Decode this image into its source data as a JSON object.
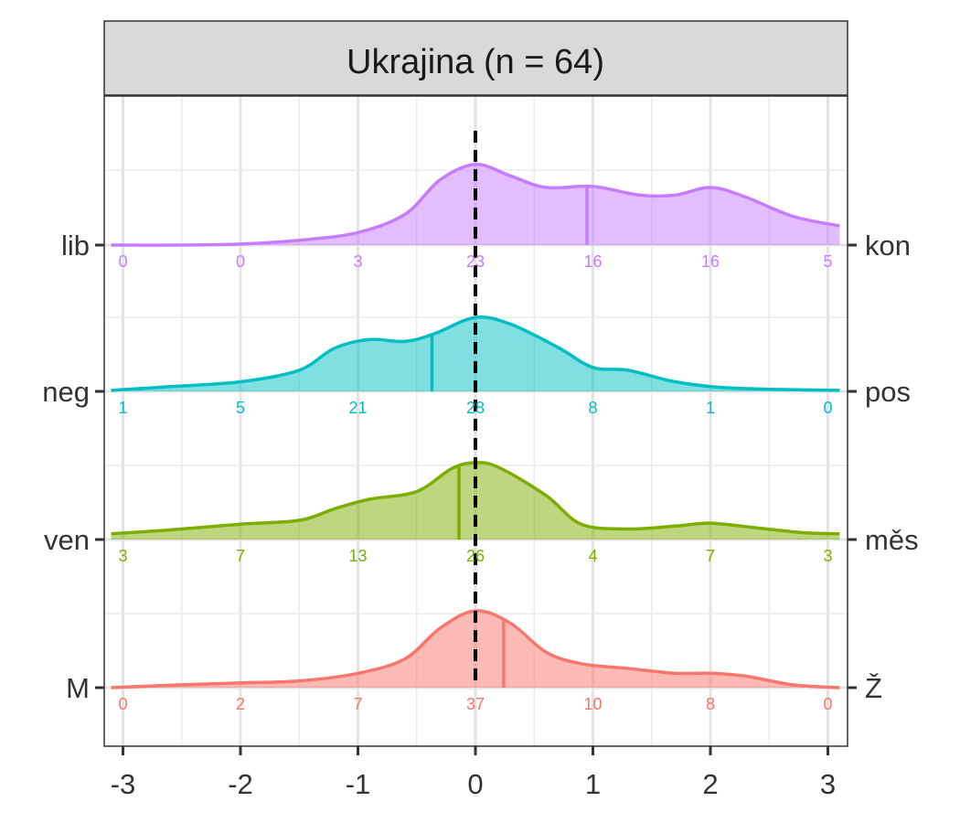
{
  "chart_data": {
    "type": "ridgeline-density",
    "title": "Ukrajina (n = 64)",
    "xlim": [
      -3.1,
      3.1
    ],
    "x_ticks": [
      -3,
      -2,
      -1,
      0,
      1,
      2,
      3
    ],
    "x_tick_labels": [
      "-3",
      "-2",
      "-1",
      "0",
      "1",
      "2",
      "3"
    ],
    "reference_line": 0,
    "count_positions": [
      -3,
      -2,
      -1,
      0,
      1,
      2,
      3
    ],
    "grid": true,
    "series": [
      {
        "name": "M–Ž",
        "left_label": "M",
        "right_label": "Ž",
        "color": "#F8766D",
        "mean": 0.24,
        "counts": [
          "0",
          "2",
          "7",
          "37",
          "10",
          "8",
          "0"
        ],
        "density": [
          [
            -3.1,
            0.0
          ],
          [
            -2.5,
            0.03
          ],
          [
            -2.0,
            0.05
          ],
          [
            -1.5,
            0.07
          ],
          [
            -1.0,
            0.15
          ],
          [
            -0.6,
            0.3
          ],
          [
            -0.3,
            0.62
          ],
          [
            0.0,
            0.8
          ],
          [
            0.3,
            0.67
          ],
          [
            0.6,
            0.37
          ],
          [
            0.9,
            0.25
          ],
          [
            1.3,
            0.2
          ],
          [
            1.7,
            0.15
          ],
          [
            2.0,
            0.15
          ],
          [
            2.3,
            0.12
          ],
          [
            2.7,
            0.03
          ],
          [
            3.1,
            0.0
          ]
        ]
      },
      {
        "name": "ven–měs",
        "left_label": "ven",
        "right_label": "měs",
        "color": "#7CAE00",
        "mean": -0.14,
        "counts": [
          "3",
          "7",
          "13",
          "26",
          "4",
          "7",
          "3"
        ],
        "density": [
          [
            -3.1,
            0.06
          ],
          [
            -2.6,
            0.1
          ],
          [
            -2.0,
            0.16
          ],
          [
            -1.5,
            0.2
          ],
          [
            -1.2,
            0.32
          ],
          [
            -0.9,
            0.42
          ],
          [
            -0.5,
            0.5
          ],
          [
            -0.2,
            0.74
          ],
          [
            0.0,
            0.8
          ],
          [
            0.2,
            0.75
          ],
          [
            0.6,
            0.46
          ],
          [
            0.9,
            0.16
          ],
          [
            1.3,
            0.11
          ],
          [
            1.7,
            0.14
          ],
          [
            2.0,
            0.17
          ],
          [
            2.4,
            0.12
          ],
          [
            2.8,
            0.07
          ],
          [
            3.1,
            0.06
          ]
        ]
      },
      {
        "name": "neg–pos",
        "left_label": "neg",
        "right_label": "pos",
        "color": "#00BFC4",
        "mean": -0.37,
        "counts": [
          "1",
          "5",
          "21",
          "28",
          "8",
          "1",
          "0"
        ],
        "density": [
          [
            -3.1,
            0.01
          ],
          [
            -2.6,
            0.05
          ],
          [
            -2.0,
            0.1
          ],
          [
            -1.5,
            0.22
          ],
          [
            -1.2,
            0.45
          ],
          [
            -0.9,
            0.54
          ],
          [
            -0.6,
            0.52
          ],
          [
            -0.35,
            0.6
          ],
          [
            0.0,
            0.77
          ],
          [
            0.3,
            0.7
          ],
          [
            0.7,
            0.46
          ],
          [
            1.0,
            0.25
          ],
          [
            1.3,
            0.22
          ],
          [
            1.7,
            0.1
          ],
          [
            2.1,
            0.04
          ],
          [
            2.6,
            0.02
          ],
          [
            3.1,
            0.01
          ]
        ]
      },
      {
        "name": "lib–kon",
        "left_label": "lib",
        "right_label": "kon",
        "color": "#C77CFF",
        "mean": 0.95,
        "counts": [
          "0",
          "0",
          "3",
          "23",
          "16",
          "16",
          "5"
        ],
        "density": [
          [
            -3.1,
            0.0
          ],
          [
            -2.5,
            0.0
          ],
          [
            -2.0,
            0.01
          ],
          [
            -1.5,
            0.05
          ],
          [
            -1.0,
            0.13
          ],
          [
            -0.6,
            0.32
          ],
          [
            -0.3,
            0.68
          ],
          [
            0.0,
            0.84
          ],
          [
            0.3,
            0.72
          ],
          [
            0.6,
            0.6
          ],
          [
            1.0,
            0.61
          ],
          [
            1.4,
            0.52
          ],
          [
            1.7,
            0.52
          ],
          [
            2.0,
            0.6
          ],
          [
            2.3,
            0.5
          ],
          [
            2.7,
            0.3
          ],
          [
            3.1,
            0.2
          ]
        ]
      }
    ]
  }
}
